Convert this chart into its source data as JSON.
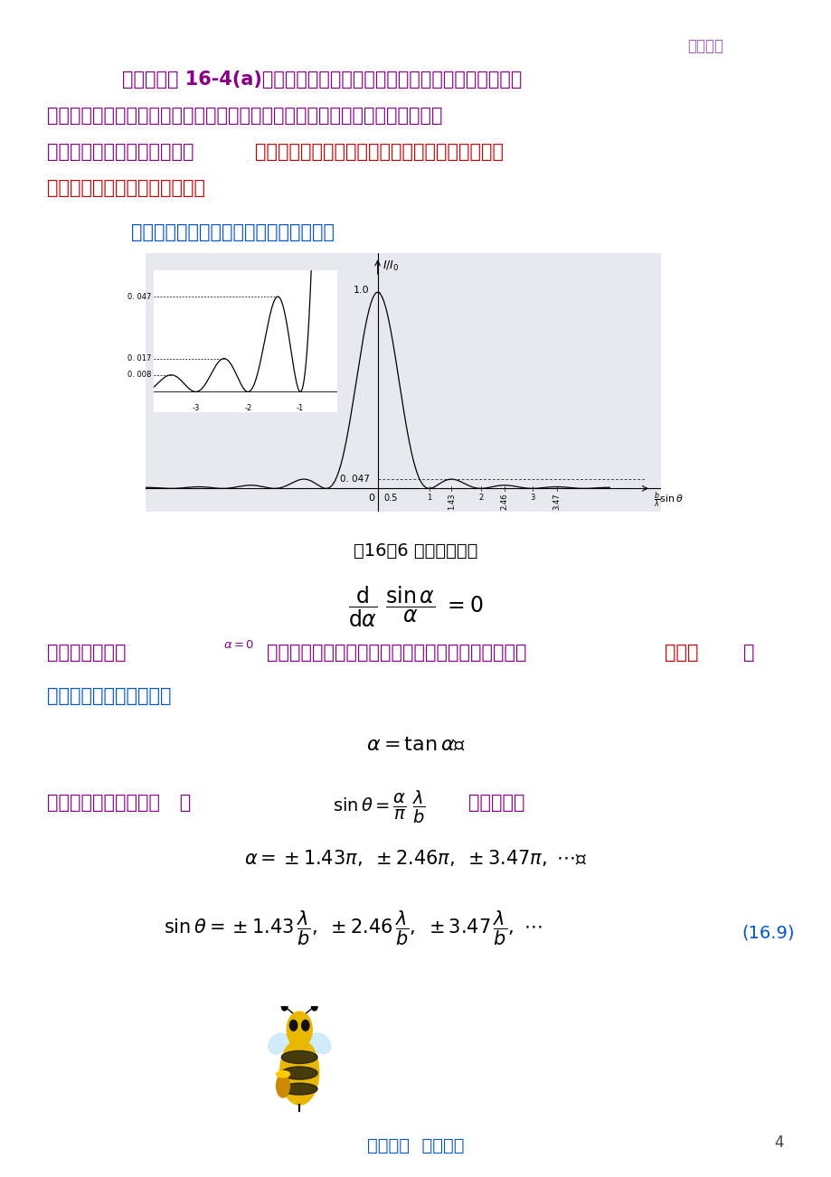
{
  "page_bg": "#ffffff",
  "watermark_text": "旗开得胜",
  "watermark_color": "#9955bb",
  "para1_color": "#880088",
  "para1_text": "例如，在图 16-4(a)所示的装置中，如果点光源的位置上下左右移动，则",
  "para2_text": "该点光源在接收屏幕上的象点将朝相反的方向移动，并可算出移动的距离，由此",
  "para3a_text": "即可确定零级衍射斑的位置。",
  "para3b_text": "如果只是单缝的位置上下左右平行移动，则其夫琅",
  "para3c_text": "禾费衍射图样的位置并不改变。",
  "para3b_color": "#cc0000",
  "para4_color": "#0055cc",
  "para4_text": "在单缝衍射因子具有极大值的地方，即在",
  "fig_caption": "图16－6 单缝衍射因子",
  "para5_color": "#880088",
  "para5d_color": "#cc0000",
  "para6_color": "#0055cc",
  "para8_color": "#880088",
  "eq_number": "(16.9)",
  "eq_number_color": "#0055cc",
  "page_number": "4",
  "footer_text": "读万卷书  行万里路",
  "footer_color": "#0055cc",
  "graph_bg": "#e8e8f0",
  "inset_bg": "#ffffff"
}
